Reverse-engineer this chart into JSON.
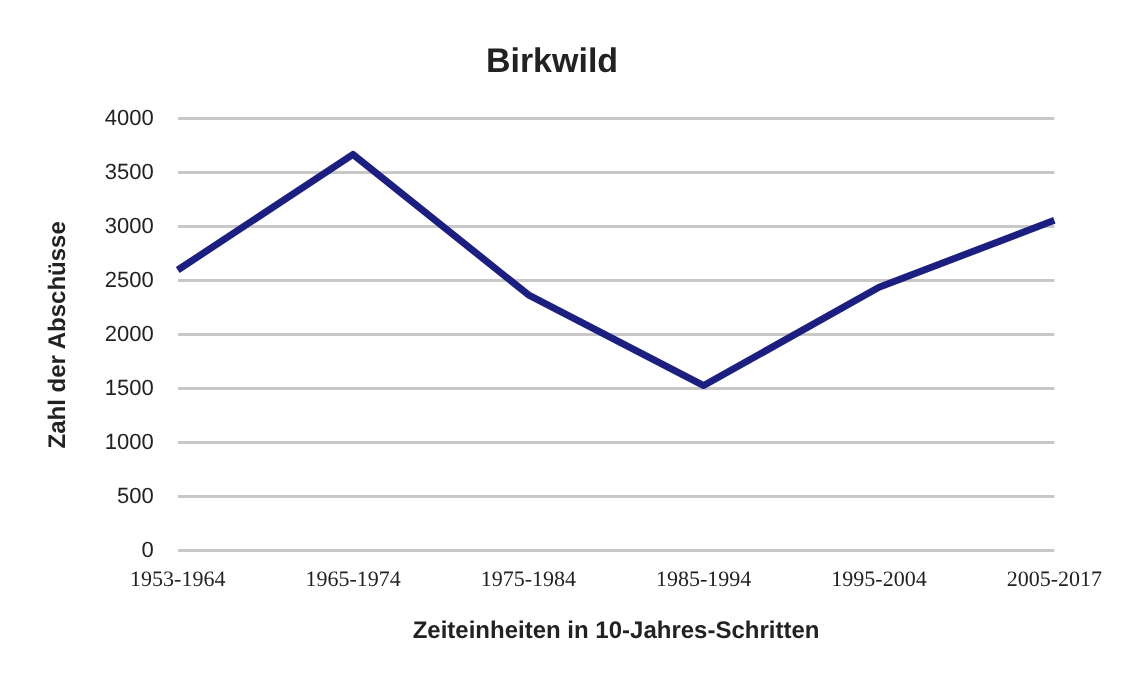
{
  "chart_data": {
    "type": "line",
    "title": "Birkwild",
    "xlabel": "Zeiteinheiten in 10-Jahres-Schritten",
    "ylabel": "Zahl der Abschüsse",
    "categories": [
      "1953-1964",
      "1965-1974",
      "1975-1984",
      "1985-1994",
      "1995-2004",
      "2005-2017"
    ],
    "series": [
      {
        "color": "#1c1f80",
        "values": [
          2600,
          3670,
          2370,
          1530,
          2440,
          3060
        ]
      }
    ],
    "ylim": [
      0,
      4000
    ],
    "yticks": [
      0,
      500,
      1000,
      1500,
      2000,
      2500,
      3000,
      3500,
      4000
    ],
    "grid": "y",
    "legend": false,
    "marker": "none",
    "line_style": "solid"
  }
}
